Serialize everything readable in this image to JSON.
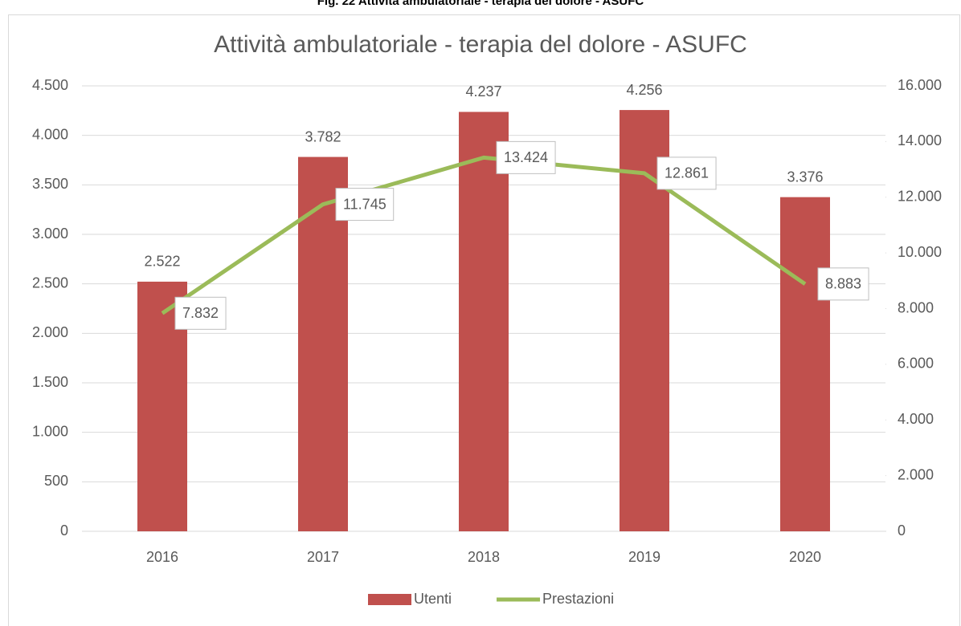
{
  "caption": "Fig. 22 Attività ambulatoriale - terapia del dolore - ASUFC",
  "chart_data": {
    "type": "bar",
    "title": "Attività ambulatoriale - terapia del dolore - ASUFC",
    "categories": [
      "2016",
      "2017",
      "2018",
      "2019",
      "2020"
    ],
    "series": [
      {
        "name": "Utenti",
        "type": "bar",
        "color": "#c0504d",
        "values": [
          2522,
          3782,
          4237,
          4256,
          3376
        ],
        "value_labels": [
          "2.522",
          "3.782",
          "4.237",
          "4.256",
          "3.376"
        ]
      },
      {
        "name": "Prestazioni",
        "type": "line",
        "axis": "y2",
        "color": "#9bbb59",
        "values": [
          7832,
          11745,
          13424,
          12861,
          8883
        ],
        "value_labels": [
          "7.832",
          "11.745",
          "13.424",
          "12.861",
          "8.883"
        ]
      }
    ],
    "ylim": [
      0,
      4500
    ],
    "yticks": [
      0,
      500,
      {
        "value": 1000,
        "label": "1.000"
      },
      {
        "value": 1500,
        "label": "1.500"
      },
      {
        "value": 2000,
        "label": "2.000"
      },
      {
        "value": 2500,
        "label": "2.500"
      },
      {
        "value": 3000,
        "label": "3.000"
      },
      {
        "value": 3500,
        "label": "3.500"
      },
      {
        "value": 4000,
        "label": "4.000"
      },
      {
        "value": 4500,
        "label": "4.500"
      }
    ],
    "y2lim": [
      0,
      16000
    ],
    "y2ticks": [
      0,
      {
        "value": 2000,
        "label": "2.000"
      },
      {
        "value": 4000,
        "label": "4.000"
      },
      {
        "value": 6000,
        "label": "6.000"
      },
      {
        "value": 8000,
        "label": "8.000"
      },
      {
        "value": 10000,
        "label": "10.000"
      },
      {
        "value": 12000,
        "label": "12.000"
      },
      {
        "value": 14000,
        "label": "14.000"
      },
      {
        "value": 16000,
        "label": "16.000"
      }
    ],
    "grid": true,
    "legend": "bottom"
  }
}
